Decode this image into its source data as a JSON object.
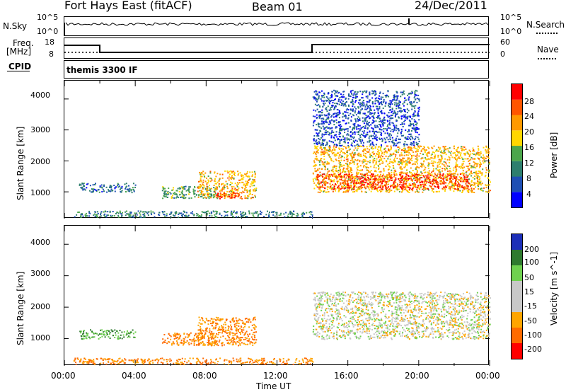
{
  "header": {
    "site_title": "Fort Hays East (fitACF)",
    "beam": "Beam 01",
    "date": "24/Dec/2011"
  },
  "top_panel": {
    "left_label": "N.Sky",
    "right_label": "N.Search",
    "left_ticks": [
      "10^5",
      "10^0"
    ],
    "right_ticks": [
      "10^5",
      "10^0"
    ]
  },
  "freq_panel": {
    "left_label_1": "Freq.",
    "left_label_2": "[MHz]",
    "right_label": "Nave",
    "left_ticks": [
      "18",
      "8"
    ],
    "right_ticks": [
      "60",
      "0"
    ]
  },
  "cpid_panel": {
    "label": "CPID",
    "mode": "themis 3300 IF"
  },
  "power_panel": {
    "ylabel": "Slant Range [km]",
    "yticks": [
      "4000",
      "3000",
      "2000",
      "1000"
    ],
    "colorbar_label": "Power [dB]",
    "colorbar_ticks": [
      "28",
      "24",
      "20",
      "16",
      "12",
      "8",
      "4"
    ],
    "colors": [
      "#0000ff",
      "#1e4fb4",
      "#2d7f6e",
      "#4ca64c",
      "#ffd700",
      "#ff9900",
      "#ff5500",
      "#ff0000"
    ]
  },
  "velocity_panel": {
    "ylabel": "Slant Range [km]",
    "yticks": [
      "4000",
      "3000",
      "2000",
      "1000"
    ],
    "colorbar_label": "Velocity [m s^-1]",
    "colorbar_ticks": [
      "200",
      "100",
      "50",
      "15",
      "-15",
      "-50",
      "-100",
      "-200"
    ],
    "colors": [
      "#1c2fb8",
      "#2f7a2f",
      "#6fd14f",
      "#c8c8c8",
      "#c8c8c8",
      "#ffa500",
      "#ff6a00",
      "#ff0000"
    ]
  },
  "x_axis": {
    "label": "Time UT",
    "ticks": [
      "00:00",
      "04:00",
      "08:00",
      "12:00",
      "16:00",
      "20:00",
      "00:00"
    ]
  },
  "chart_data": {
    "type": "heatmap",
    "x_range_hours": [
      0,
      24
    ],
    "y_range_km": [
      180,
      4500
    ],
    "power_clusters": [
      {
        "t": [
          0.8,
          4.0
        ],
        "r": [
          1000,
          1300
        ],
        "db": 8
      },
      {
        "t": [
          5.5,
          8.5
        ],
        "r": [
          800,
          1200
        ],
        "db": 12
      },
      {
        "t": [
          7.5,
          10.8
        ],
        "r": [
          800,
          1700
        ],
        "db": 20
      },
      {
        "t": [
          8.5,
          10.0
        ],
        "r": [
          800,
          1000
        ],
        "db": 28
      },
      {
        "t": [
          14.0,
          24.0
        ],
        "r": [
          1000,
          2500
        ],
        "db": 20
      },
      {
        "t": [
          14.2,
          22.8
        ],
        "r": [
          1100,
          1600
        ],
        "db": 28
      },
      {
        "t": [
          14.0,
          20.0
        ],
        "r": [
          2500,
          4300
        ],
        "db": 6
      },
      {
        "t": [
          0.5,
          14.0
        ],
        "r": [
          200,
          400
        ],
        "db": 10
      }
    ],
    "velocity_clusters": [
      {
        "t": [
          0.8,
          4.0
        ],
        "r": [
          1000,
          1300
        ],
        "v": 50
      },
      {
        "t": [
          5.5,
          8.5
        ],
        "r": [
          800,
          1200
        ],
        "v": -50
      },
      {
        "t": [
          7.5,
          10.8
        ],
        "r": [
          800,
          1700
        ],
        "v": -50
      },
      {
        "t": [
          14.0,
          24.0
        ],
        "r": [
          1000,
          2500
        ],
        "v": 0
      },
      {
        "t": [
          0.5,
          14.0
        ],
        "r": [
          200,
          400
        ],
        "v": -50
      }
    ]
  }
}
